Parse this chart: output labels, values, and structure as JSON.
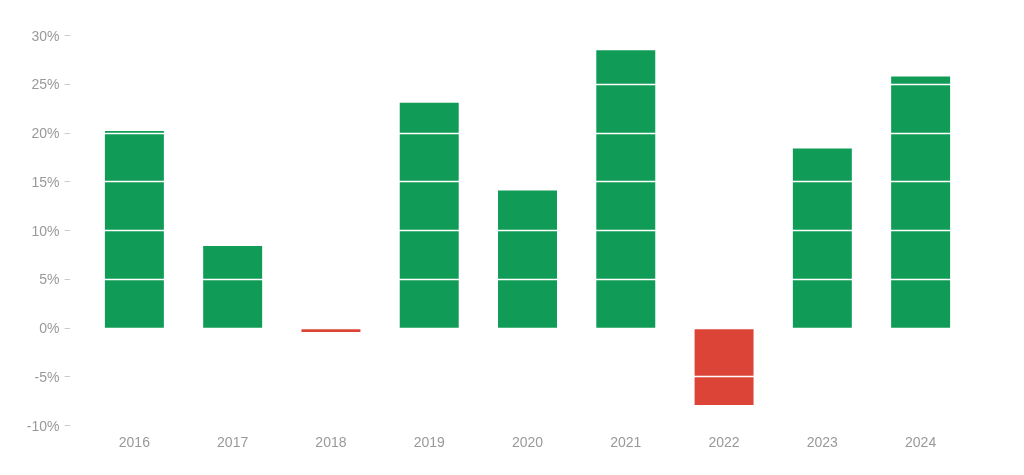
{
  "chart_data": {
    "type": "bar",
    "categories": [
      "2016",
      "2017",
      "2018",
      "2019",
      "2020",
      "2021",
      "2022",
      "2023",
      "2024"
    ],
    "values": [
      20.2,
      8.4,
      -0.4,
      23.1,
      14.1,
      28.5,
      -7.9,
      18.4,
      25.8
    ],
    "colors": [
      "#109c56",
      "#109c56",
      "#db4437",
      "#109c56",
      "#109c56",
      "#109c56",
      "#db4437",
      "#109c56",
      "#109c56"
    ],
    "ylim": [
      -10,
      30
    ],
    "yticks": [
      {
        "value": -10,
        "label": "-10%"
      },
      {
        "value": -5,
        "label": "-5%"
      },
      {
        "value": 0,
        "label": "0%"
      },
      {
        "value": 5,
        "label": "5%"
      },
      {
        "value": 10,
        "label": "10%"
      },
      {
        "value": 15,
        "label": "15%"
      },
      {
        "value": 20,
        "label": "20%"
      },
      {
        "value": 25,
        "label": "25%"
      },
      {
        "value": 30,
        "label": "30%"
      }
    ],
    "grid": "y"
  }
}
